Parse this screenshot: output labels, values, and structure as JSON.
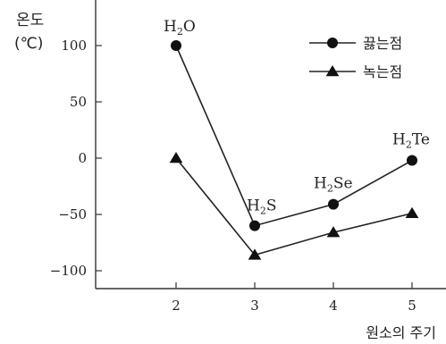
{
  "chart_data": {
    "type": "line",
    "title": "",
    "ylabel_line1": "온도",
    "ylabel_line2": "(℃)",
    "xlabel": "원소의 주기",
    "x": [
      2,
      3,
      4,
      5
    ],
    "ylim": [
      -120,
      120
    ],
    "yticks": [
      100,
      50,
      0,
      -50,
      -100
    ],
    "ytick_labels": [
      "100",
      "50",
      "0",
      "−50",
      "−100"
    ],
    "xtick_labels": [
      "2",
      "3",
      "4",
      "5"
    ],
    "grid": false,
    "legend_position": "top-right",
    "series": [
      {
        "name": "끓는점",
        "marker": "circle",
        "values": [
          100,
          -60,
          -41,
          -2
        ]
      },
      {
        "name": "녹는점",
        "marker": "triangle",
        "values": [
          0,
          -86,
          -66,
          -49
        ]
      }
    ],
    "annotations": [
      {
        "base": "H",
        "sub": "2",
        "rest": "O",
        "x": 2,
        "value": 100
      },
      {
        "base": "H",
        "sub": "2",
        "rest": "S",
        "x": 3,
        "value": -60
      },
      {
        "base": "H",
        "sub": "2",
        "rest": "Se",
        "x": 4,
        "value": -41
      },
      {
        "base": "H",
        "sub": "2",
        "rest": "Te",
        "x": 5,
        "value": -2
      }
    ],
    "colors": {
      "line": "#222222",
      "marker": "#111111",
      "axis": "#333333"
    }
  }
}
